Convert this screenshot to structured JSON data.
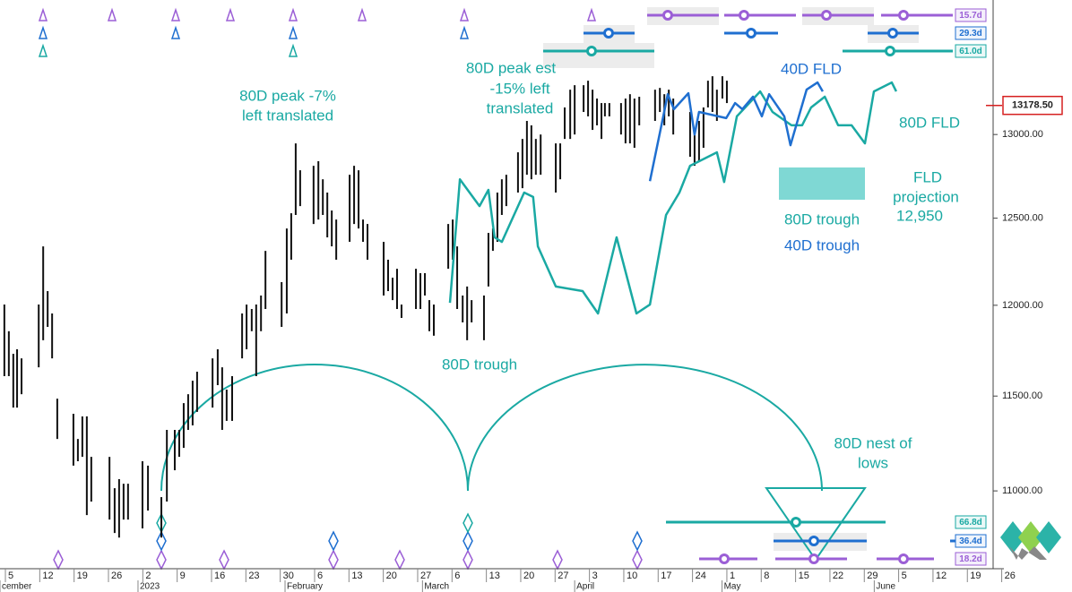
{
  "chart_data": {
    "type": "ohlc",
    "log_scale": true,
    "xlim": [
      -0.157,
      28.75
    ],
    "ylim": [
      10606,
      13846
    ],
    "xticks": [
      {
        "value": 0,
        "label": "5"
      },
      {
        "value": 1,
        "label": "12"
      },
      {
        "value": 2,
        "label": "19"
      },
      {
        "value": 3,
        "label": "26"
      },
      {
        "value": 4,
        "label": "2"
      },
      {
        "value": 5,
        "label": "9"
      },
      {
        "value": 6,
        "label": "16"
      },
      {
        "value": 7,
        "label": "23"
      },
      {
        "value": 8,
        "label": "30"
      },
      {
        "value": 9,
        "label": "6"
      },
      {
        "value": 10,
        "label": "13"
      },
      {
        "value": 11,
        "label": "20"
      },
      {
        "value": 12,
        "label": "27"
      },
      {
        "value": 13,
        "label": "6"
      },
      {
        "value": 14,
        "label": "13"
      },
      {
        "value": 15,
        "label": "20"
      },
      {
        "value": 16,
        "label": "27"
      },
      {
        "value": 17,
        "label": "3"
      },
      {
        "value": 18,
        "label": "10"
      },
      {
        "value": 19,
        "label": "17"
      },
      {
        "value": 20,
        "label": "24"
      },
      {
        "value": 21,
        "label": "1"
      },
      {
        "value": 22,
        "label": "8"
      },
      {
        "value": 23,
        "label": "15"
      },
      {
        "value": 24,
        "label": "22"
      },
      {
        "value": 25,
        "label": "29"
      },
      {
        "value": 26,
        "label": "5"
      },
      {
        "value": 27,
        "label": "12"
      },
      {
        "value": 28,
        "label": "19"
      },
      {
        "value": 29,
        "label": "26"
      }
    ],
    "month_ticks": [
      {
        "value": -0.157,
        "label": "cember"
      },
      {
        "value": 3.86,
        "label": "2023"
      },
      {
        "value": 8.14,
        "label": "February"
      },
      {
        "value": 12.14,
        "label": "March"
      },
      {
        "value": 16.57,
        "label": "April"
      },
      {
        "value": 20.86,
        "label": "May"
      },
      {
        "value": 25.29,
        "label": "June"
      }
    ],
    "yticks": [
      {
        "value": 11000,
        "label": "11000.00"
      },
      {
        "value": 11500,
        "label": "11500.00"
      },
      {
        "value": 12000,
        "label": "12000.00"
      },
      {
        "value": 12500,
        "label": "12500.00"
      },
      {
        "value": 13000,
        "label": "13000.00"
      }
    ],
    "bars": {
      "color": "#111111",
      "x": [
        -0.03,
        0.1,
        0.23,
        0.34,
        0.47,
        0.97,
        1.1,
        1.23,
        1.36,
        1.51,
        1.98,
        2.11,
        2.24,
        2.37,
        2.5,
        3.03,
        3.18,
        3.31,
        3.44,
        3.57,
        3.99,
        4.15,
        4.54,
        4.7,
        4.93,
        5.06,
        5.19,
        5.32,
        5.45,
        5.58,
        6.03,
        6.18,
        6.31,
        6.44,
        6.6,
        6.89,
        7.02,
        7.17,
        7.3,
        7.44,
        7.57,
        8.04,
        8.19,
        8.32,
        8.45,
        8.58,
        8.97,
        9.11,
        9.24,
        9.37,
        9.5,
        9.63,
        10.02,
        10.15,
        10.28,
        10.41,
        10.54,
        11.01,
        11.14,
        11.27,
        11.4,
        11.53,
        11.95,
        12.08,
        12.21,
        12.34,
        12.47,
        12.89,
        13.02,
        13.15,
        13.31,
        13.44,
        13.57,
        13.93,
        14.06,
        14.19,
        14.32,
        14.45,
        14.58,
        14.92,
        15.05,
        15.18,
        15.31,
        15.44,
        15.58,
        16.02,
        16.15,
        16.28,
        16.44,
        16.57,
        16.83,
        16.96,
        17.09,
        17.22,
        17.35,
        17.45,
        17.58,
        17.92,
        18.05,
        18.18,
        18.31,
        18.45,
        18.91,
        19.05,
        19.18,
        19.31,
        19.44,
        19.93,
        20.06,
        20.19,
        20.32,
        20.45,
        20.58,
        20.71,
        20.87,
        21.0
      ],
      "high": [
        12004,
        11855,
        11730,
        11755,
        11705,
        12004,
        12336,
        12080,
        11954,
        11486,
        11405,
        11271,
        11391,
        11391,
        11177,
        11177,
        11014,
        11061,
        11037,
        11037,
        11154,
        11131,
        10968,
        11319,
        11319,
        11319,
        11462,
        11510,
        11583,
        11632,
        11705,
        11755,
        11656,
        11535,
        11608,
        11954,
        12004,
        11979,
        12004,
        12055,
        12310,
        12131,
        12440,
        12529,
        12946,
        12784,
        12811,
        12838,
        12730,
        12651,
        12545,
        12492,
        12757,
        12811,
        12784,
        12492,
        12466,
        12362,
        12259,
        12156,
        12207,
        12004,
        12207,
        12182,
        12182,
        12029,
        12004,
        12466,
        12492,
        12336,
        12055,
        12106,
        12029,
        12055,
        12414,
        12440,
        12651,
        12730,
        12757,
        12892,
        12973,
        13083,
        13056,
        12973,
        13000,
        12946,
        12946,
        13166,
        13276,
        13304,
        13304,
        13332,
        13276,
        13221,
        13193,
        13193,
        13193,
        13193,
        13221,
        13248,
        13221,
        13232,
        13276,
        13287,
        13248,
        13276,
        13221,
        13138,
        13028,
        13083,
        13166,
        13332,
        13360,
        13276,
        13360,
        13332
      ],
      "low": [
        11608,
        11608,
        11438,
        11438,
        11510,
        11656,
        11805,
        11879,
        11705,
        11271,
        11131,
        11154,
        11177,
        10876,
        10945,
        10853,
        10785,
        10762,
        10853,
        10853,
        10808,
        10899,
        10762,
        10945,
        11107,
        11177,
        11224,
        11319,
        11343,
        11415,
        11438,
        11559,
        11319,
        11367,
        11367,
        11705,
        11755,
        11855,
        11608,
        11855,
        11979,
        11879,
        11954,
        12259,
        12519,
        12571,
        12466,
        12492,
        12519,
        12388,
        12336,
        12259,
        12362,
        12466,
        12440,
        12362,
        12259,
        12055,
        12080,
        12029,
        11979,
        11929,
        11979,
        11979,
        12055,
        11855,
        11830,
        12207,
        12259,
        11979,
        11904,
        11805,
        11904,
        11805,
        12106,
        12310,
        12362,
        12519,
        12571,
        12651,
        12677,
        12757,
        12730,
        12757,
        12757,
        12651,
        12730,
        12973,
        12973,
        13000,
        13138,
        13111,
        13028,
        13056,
        12973,
        13111,
        13111,
        13000,
        12946,
        12946,
        12919,
        13056,
        13083,
        13138,
        13056,
        13111,
        13000,
        12865,
        12811,
        12838,
        12919,
        13166,
        13138,
        13083,
        13221,
        13193
      ]
    },
    "series": [
      {
        "color": "#1aa9a3",
        "x": [
          12.94,
          13.23,
          13.8,
          14.06,
          14.24,
          14.45,
          15.1,
          15.36,
          15.5,
          16.02,
          16.8,
          17.25,
          17.79,
          18.37,
          18.76,
          19.23,
          19.62,
          19.93,
          20.71,
          20.92,
          21.29,
          21.97,
          22.33,
          22.88,
          23.19,
          23.45,
          23.85,
          24.24,
          24.63,
          25.02,
          25.28,
          25.8,
          25.93
        ],
        "values": [
          12014,
          12730,
          12571,
          12667,
          12388,
          12362,
          12651,
          12625,
          12336,
          12106,
          12080,
          11954,
          12388,
          11954,
          12004,
          12519,
          12651,
          12811,
          12892,
          12714,
          13111,
          13265,
          13138,
          13056,
          13056,
          13166,
          13232,
          13056,
          13056,
          12946,
          13265,
          13321,
          13265
        ]
      },
      {
        "color": "#1f6fd0",
        "x": [
          18.76,
          19.15,
          19.28,
          19.46,
          19.88,
          20.06,
          20.19,
          20.98,
          21.24,
          21.45,
          21.76,
          22.02,
          22.23,
          22.67,
          22.85,
          23.32,
          23.64,
          23.79
        ],
        "values": [
          12719,
          13111,
          13248,
          13155,
          13254,
          13000,
          13138,
          13100,
          13193,
          13155,
          13232,
          13111,
          13248,
          13111,
          12935,
          13276,
          13321,
          13265
        ]
      }
    ],
    "last_price": {
      "value": 13178.5,
      "label": "13178.50"
    },
    "cycle_labels": [
      "15.7d",
      "29.3d",
      "61.0d",
      "66.8d",
      "36.4d",
      "18.2d"
    ],
    "annotations": [
      [
        "80D peak -7%",
        "left translated"
      ],
      [
        "80D peak est",
        "-15% left",
        "translated"
      ],
      [
        "40D FLD"
      ],
      [
        "80D FLD"
      ],
      [
        "FLD",
        "projection",
        "12,950"
      ],
      [
        "80D trough"
      ],
      [
        "40D trough"
      ],
      [
        "80D trough"
      ],
      [
        "80D nest of",
        "lows"
      ]
    ]
  }
}
